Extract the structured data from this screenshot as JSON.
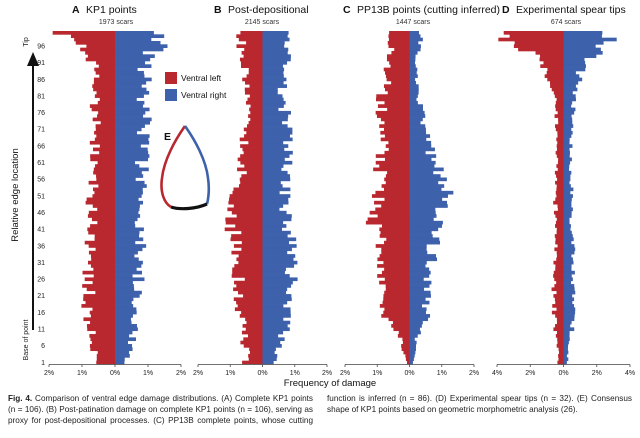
{
  "figure": {
    "y_axis_label": "Relative edge location",
    "x_axis_label": "Frequency of damage",
    "tip_label": "Tip",
    "base_label": "Base of point",
    "legend": [
      {
        "label": "Ventral left",
        "color": "#b8282e"
      },
      {
        "label": "Ventral right",
        "color": "#3e61ac"
      }
    ],
    "outline_label": "E",
    "colors": {
      "left": "#b8282e",
      "right": "#3e61ac",
      "base": "#111111"
    }
  },
  "chart_data": [
    {
      "type": "bar",
      "orientation": "horizontal-diverging",
      "panel": "A",
      "title": "KP1 points",
      "subtitle": "1973 scars",
      "y_ticks": [
        1,
        6,
        11,
        16,
        21,
        26,
        31,
        36,
        41,
        46,
        51,
        56,
        61,
        66,
        71,
        76,
        81,
        86,
        91,
        96
      ],
      "x_ticks": [
        "2%",
        "1%",
        "0%",
        "1%",
        "2%"
      ],
      "xlim": [
        -2,
        2
      ],
      "control_points": {
        "positions": [
          1,
          10,
          20,
          30,
          40,
          50,
          60,
          70,
          80,
          90,
          97,
          100
        ],
        "left": [
          0.5,
          0.8,
          0.8,
          0.8,
          0.7,
          0.7,
          0.6,
          0.6,
          0.6,
          0.6,
          1.0,
          1.8
        ],
        "right": [
          0.3,
          0.6,
          0.7,
          0.7,
          0.8,
          0.8,
          0.8,
          0.9,
          0.9,
          0.9,
          1.3,
          1.6
        ]
      }
    },
    {
      "type": "bar",
      "orientation": "horizontal-diverging",
      "panel": "B",
      "title": "Post-depositional",
      "subtitle": "2145 scars",
      "y_ticks": [
        1,
        6,
        11,
        16,
        21,
        26,
        31,
        36,
        41,
        46,
        51,
        56,
        61,
        66,
        71,
        76,
        81,
        86,
        91,
        96
      ],
      "x_ticks": [
        "2%",
        "1%",
        "0%",
        "1%",
        "2%"
      ],
      "xlim": [
        -2,
        2
      ],
      "control_points": {
        "positions": [
          1,
          10,
          20,
          30,
          40,
          46,
          55,
          65,
          75,
          85,
          95,
          100
        ],
        "left": [
          0.5,
          0.6,
          0.7,
          0.8,
          0.9,
          1.0,
          0.7,
          0.6,
          0.5,
          0.5,
          0.6,
          0.8
        ],
        "right": [
          0.3,
          0.7,
          0.8,
          0.9,
          0.8,
          0.7,
          0.7,
          0.8,
          0.7,
          0.6,
          0.8,
          1.1
        ]
      }
    },
    {
      "type": "bar",
      "orientation": "horizontal-diverging",
      "panel": "C",
      "title": "PP13B points (cutting inferred)",
      "subtitle": "1447 scars",
      "y_ticks": [
        1,
        6,
        11,
        16,
        21,
        26,
        31,
        36,
        41,
        46,
        51,
        56,
        61,
        66,
        71,
        76,
        81,
        86,
        91,
        96
      ],
      "x_ticks": [
        "2%",
        "1%",
        "0%",
        "1%",
        "2%"
      ],
      "xlim": [
        -2,
        2
      ],
      "control_points": {
        "positions": [
          1,
          8,
          15,
          25,
          35,
          45,
          52,
          60,
          70,
          80,
          90,
          100
        ],
        "left": [
          0.1,
          0.3,
          0.7,
          0.8,
          0.9,
          1.1,
          1.0,
          0.9,
          0.8,
          0.9,
          0.6,
          0.5
        ],
        "right": [
          0.1,
          0.2,
          0.5,
          0.6,
          0.7,
          0.9,
          1.1,
          0.8,
          0.5,
          0.3,
          0.2,
          0.4
        ]
      }
    },
    {
      "type": "bar",
      "orientation": "horizontal-diverging",
      "panel": "D",
      "title": "Experimental spear tips",
      "subtitle": "674 scars",
      "y_ticks": [
        1,
        6,
        11,
        16,
        21,
        26,
        31,
        36,
        41,
        46,
        51,
        56,
        61,
        66,
        71,
        76,
        81,
        86,
        91,
        96
      ],
      "x_ticks": [
        "4%",
        "2%",
        "0%",
        "2%",
        "4%"
      ],
      "xlim": [
        -4,
        4
      ],
      "control_points": {
        "positions": [
          1,
          10,
          20,
          30,
          40,
          50,
          60,
          70,
          80,
          88,
          95,
          100
        ],
        "left": [
          0.3,
          0.5,
          0.6,
          0.5,
          0.4,
          0.5,
          0.4,
          0.4,
          0.5,
          1.0,
          2.2,
          3.8
        ],
        "right": [
          0.2,
          0.5,
          0.6,
          0.6,
          0.5,
          0.5,
          0.4,
          0.5,
          0.6,
          1.0,
          2.0,
          3.2
        ]
      }
    }
  ],
  "caption": {
    "label": "Fig. 4.",
    "text": "Comparison of ventral edge damage distributions. (A) Complete KP1 points (n = 106). (B) Post-patination damage on complete KP1 points (n = 106), serving as proxy for post-depositional processes. (C) PP13B complete points, whose cutting function is inferred (n = 86). (D) Experimental spear tips (n = 32). (E) Consensus shape of KP1 points based on geometric morphometric analysis (26)."
  }
}
